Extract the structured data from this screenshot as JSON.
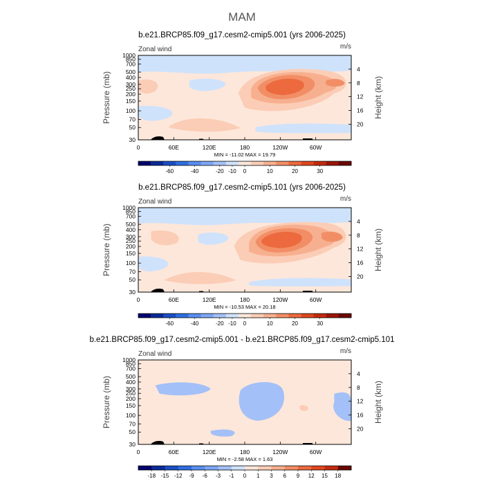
{
  "figure": {
    "title": "MAM"
  },
  "panels": [
    {
      "title": "b.e21.BRCP85.f09_g17.cesm2-cmip5.001 (yrs 2006-2025)",
      "left_label": "Zonal wind",
      "right_label": "m/s",
      "stats": "MIN = -11.02   MAX =  19.79",
      "variant": "a"
    },
    {
      "title": "b.e21.BRCP85.f09_g17.cesm2-cmip5.101 (yrs 2006-2025)",
      "left_label": "Zonal wind",
      "right_label": "m/s",
      "stats": "MIN = -10.53   MAX =  20.18",
      "variant": "b"
    },
    {
      "title": "b.e21.BRCP85.f09_g17.cesm2-cmip5.001 - b.e21.BRCP85.f09_g17.cesm2-cmip5.101",
      "left_label": "Zonal wind",
      "right_label": "m/s",
      "stats": "MIN =  -2.58   MAX =   1.63",
      "variant": "diff"
    }
  ],
  "colors": {
    "scale": [
      "#02026e",
      "#0a2a98",
      "#1a4fc4",
      "#2e6fe0",
      "#5a8ef0",
      "#7da7f5",
      "#a3c0f8",
      "#cfe2fb",
      "#fde7da",
      "#fbcdb6",
      "#f7b08f",
      "#f28e66",
      "#ec6a3e",
      "#e0471d",
      "#c42b0e",
      "#9b1608",
      "#6b0804"
    ],
    "zero_band": "#cfe2fb",
    "land": "#000000"
  },
  "chart_data": [
    {
      "type": "heatmap",
      "title": "b.e21.BRCP85.f09_g17.cesm2-cmip5.001 (yrs 2006-2025)",
      "variable": "Zonal wind",
      "units": "m/s",
      "xlabel": "",
      "ylabel": "Pressure (mb)",
      "y2label": "Height (km)",
      "x_ticks": [
        "0",
        "60E",
        "120E",
        "180",
        "120W",
        "60W"
      ],
      "x_tick_values": [
        0,
        60,
        120,
        180,
        240,
        300
      ],
      "xlim": [
        0,
        360
      ],
      "y_ticks": [
        30,
        50,
        70,
        100,
        150,
        200,
        250,
        300,
        400,
        500,
        700,
        850,
        1000
      ],
      "ylim": [
        1000,
        30
      ],
      "y2_ticks": [
        4,
        8,
        12,
        16,
        20
      ],
      "colorbar_ticks": [
        "-60",
        "-40",
        "-20",
        "-10",
        "0",
        "10",
        "20",
        "30"
      ],
      "min": -11.02,
      "max": 19.79
    },
    {
      "type": "heatmap",
      "title": "b.e21.BRCP85.f09_g17.cesm2-cmip5.101 (yrs 2006-2025)",
      "variable": "Zonal wind",
      "units": "m/s",
      "xlabel": "",
      "ylabel": "Pressure (mb)",
      "y2label": "Height (km)",
      "x_ticks": [
        "0",
        "60E",
        "120E",
        "180",
        "120W",
        "60W"
      ],
      "x_tick_values": [
        0,
        60,
        120,
        180,
        240,
        300
      ],
      "xlim": [
        0,
        360
      ],
      "y_ticks": [
        30,
        50,
        70,
        100,
        150,
        200,
        250,
        300,
        400,
        500,
        700,
        850,
        1000
      ],
      "ylim": [
        1000,
        30
      ],
      "y2_ticks": [
        4,
        8,
        12,
        16,
        20
      ],
      "colorbar_ticks": [
        "-60",
        "-40",
        "-20",
        "-10",
        "0",
        "10",
        "20",
        "30"
      ],
      "min": -10.53,
      "max": 20.18
    },
    {
      "type": "heatmap",
      "title": "b.e21.BRCP85.f09_g17.cesm2-cmip5.001 - b.e21.BRCP85.f09_g17.cesm2-cmip5.101",
      "variable": "Zonal wind",
      "units": "m/s",
      "xlabel": "",
      "ylabel": "Pressure (mb)",
      "y2label": "Height (km)",
      "x_ticks": [
        "0",
        "60E",
        "120E",
        "180",
        "120W",
        "60W"
      ],
      "x_tick_values": [
        0,
        60,
        120,
        180,
        240,
        300
      ],
      "xlim": [
        0,
        360
      ],
      "y_ticks": [
        30,
        50,
        70,
        100,
        150,
        200,
        250,
        300,
        400,
        500,
        700,
        850,
        1000
      ],
      "ylim": [
        1000,
        30
      ],
      "y2_ticks": [
        4,
        8,
        12,
        16,
        20
      ],
      "colorbar_ticks": [
        "-18",
        "-15",
        "-12",
        "-9",
        "-6",
        "-3",
        "-1",
        "0",
        "1",
        "3",
        "6",
        "9",
        "12",
        "15",
        "18"
      ],
      "min": -2.58,
      "max": 1.63
    }
  ]
}
